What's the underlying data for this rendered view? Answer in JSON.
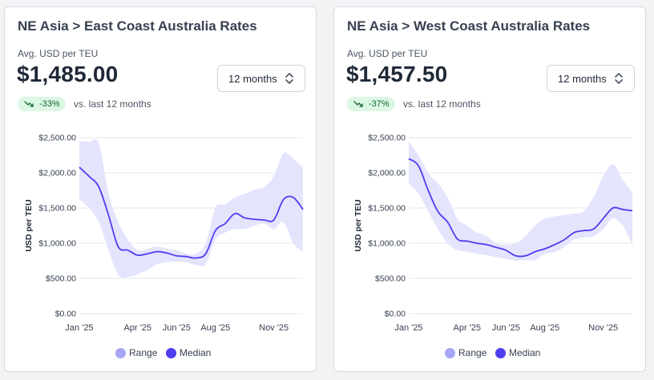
{
  "colors": {
    "median_line": "#4f3df0",
    "range_fill": "#e4e4fd",
    "range_legend": "#a7a5f5",
    "median_legend": "#4f3df0",
    "badge_bg": "#dcf7e3",
    "badge_text": "#166534",
    "grid": "#e5e7eb"
  },
  "icons": {
    "badge": "trend-down-icon",
    "period": "chevron-up-down-icon"
  },
  "cards": [
    {
      "title": "NE Asia > East Coast Australia Rates",
      "subtitle": "Avg. USD per TEU",
      "value": "$1,485.00",
      "period": "12 months",
      "change": "-33%",
      "comparison": "vs. last 12 months"
    },
    {
      "title": "NE Asia > West Coast Australia Rates",
      "subtitle": "Avg. USD per TEU",
      "value": "$1,457.50",
      "period": "12 months",
      "change": "-37%",
      "comparison": "vs. last 12 months"
    }
  ],
  "chart_data": [
    {
      "type": "area",
      "title": "NE Asia > East Coast Australia Rates",
      "ylabel": "USD per TEU",
      "ylim": [
        0,
        2500
      ],
      "yticks": [
        "$0.00",
        "$500.00",
        "$1,000.00",
        "$1,500.00",
        "$2,000.00",
        "$2,500.00"
      ],
      "xticks": [
        {
          "label": "Jan '25",
          "x": 0
        },
        {
          "label": "Apr '25",
          "x": 3
        },
        {
          "label": "Jun '25",
          "x": 5
        },
        {
          "label": "Aug '25",
          "x": 7
        },
        {
          "label": "Nov '25",
          "x": 10
        }
      ],
      "grid": true,
      "legend": "bottom-center",
      "x": [
        0,
        0.5,
        1,
        1.5,
        2,
        2.5,
        3,
        3.5,
        4,
        4.5,
        5,
        5.5,
        6,
        6.5,
        7,
        7.5,
        8,
        8.5,
        9,
        9.5,
        10,
        10.5,
        11,
        11.5
      ],
      "series": [
        {
          "name": "Median",
          "values": [
            2080,
            1950,
            1800,
            1400,
            950,
            900,
            830,
            850,
            880,
            860,
            820,
            810,
            790,
            850,
            1180,
            1280,
            1420,
            1360,
            1340,
            1330,
            1330,
            1620,
            1650,
            1480
          ]
        },
        {
          "name": "Range",
          "upper": [
            2450,
            2440,
            2420,
            1700,
            1300,
            1050,
            900,
            920,
            950,
            920,
            900,
            850,
            850,
            1000,
            1500,
            1550,
            1650,
            1700,
            1760,
            1800,
            1950,
            2280,
            2200,
            2070
          ],
          "lower": [
            1620,
            1500,
            1300,
            900,
            550,
            520,
            560,
            620,
            700,
            730,
            740,
            730,
            690,
            700,
            1050,
            1150,
            1200,
            1200,
            1250,
            1280,
            1200,
            1300,
            1000,
            880
          ]
        }
      ]
    },
    {
      "type": "area",
      "title": "NE Asia > West Coast Australia Rates",
      "ylabel": "USD per TEU",
      "ylim": [
        0,
        2500
      ],
      "yticks": [
        "$0.00",
        "$500.00",
        "$1,000.00",
        "$1,500.00",
        "$2,000.00",
        "$2,500.00"
      ],
      "xticks": [
        {
          "label": "Jan '25",
          "x": 0
        },
        {
          "label": "Apr '25",
          "x": 3
        },
        {
          "label": "Jun '25",
          "x": 5
        },
        {
          "label": "Aug '25",
          "x": 7
        },
        {
          "label": "Nov '25",
          "x": 10
        }
      ],
      "grid": true,
      "legend": "bottom-center",
      "x": [
        0,
        0.5,
        1,
        1.5,
        2,
        2.5,
        3,
        3.5,
        4,
        4.5,
        5,
        5.5,
        6,
        6.5,
        7,
        7.5,
        8,
        8.5,
        9,
        9.5,
        10,
        10.5,
        11,
        11.5
      ],
      "series": [
        {
          "name": "Median",
          "values": [
            2200,
            2100,
            1750,
            1450,
            1300,
            1060,
            1030,
            1000,
            980,
            940,
            900,
            820,
            820,
            880,
            920,
            980,
            1050,
            1150,
            1180,
            1200,
            1350,
            1500,
            1480,
            1460
          ]
        },
        {
          "name": "Range",
          "upper": [
            2450,
            2250,
            2000,
            1850,
            1650,
            1350,
            1250,
            1150,
            1100,
            1000,
            980,
            1000,
            1100,
            1250,
            1350,
            1380,
            1400,
            1420,
            1450,
            1650,
            1950,
            2120,
            1900,
            1720
          ],
          "lower": [
            1850,
            1700,
            1450,
            1200,
            1000,
            900,
            880,
            850,
            830,
            800,
            780,
            750,
            760,
            760,
            850,
            870,
            950,
            1050,
            1080,
            1100,
            1200,
            1350,
            1250,
            980
          ]
        }
      ]
    }
  ]
}
